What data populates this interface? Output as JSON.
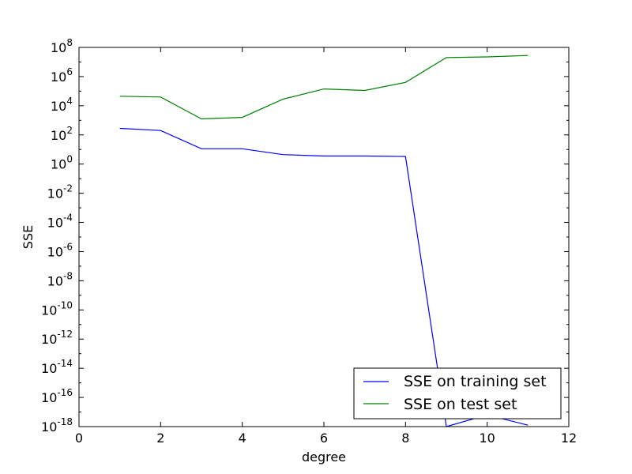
{
  "chart_data": {
    "type": "line",
    "title": "",
    "xlabel": "degree",
    "ylabel": "SSE",
    "xlim": [
      0,
      12
    ],
    "ylim_log10": [
      -18,
      8
    ],
    "y_scale": "log",
    "grid": false,
    "legend_position": "lower-right",
    "x_ticks": [
      0,
      2,
      4,
      6,
      8,
      10,
      12
    ],
    "y_tick_exponents": [
      8,
      6,
      4,
      2,
      0,
      -2,
      -4,
      -6,
      -8,
      -10,
      -12,
      -14,
      -16,
      -18
    ],
    "x": [
      1,
      2,
      3,
      4,
      5,
      6,
      7,
      8,
      9,
      10,
      11
    ],
    "series": [
      {
        "name": "SSE on training set",
        "color": "#0000ff",
        "log10_values": [
          2.45,
          2.3,
          1.05,
          1.05,
          0.65,
          0.55,
          0.55,
          0.52,
          -18.0,
          -17.2,
          -17.9
        ]
      },
      {
        "name": "SSE on test set",
        "color": "#008000",
        "log10_values": [
          4.65,
          4.6,
          3.1,
          3.2,
          4.45,
          5.15,
          5.05,
          5.6,
          7.3,
          7.35,
          7.45
        ]
      }
    ]
  }
}
